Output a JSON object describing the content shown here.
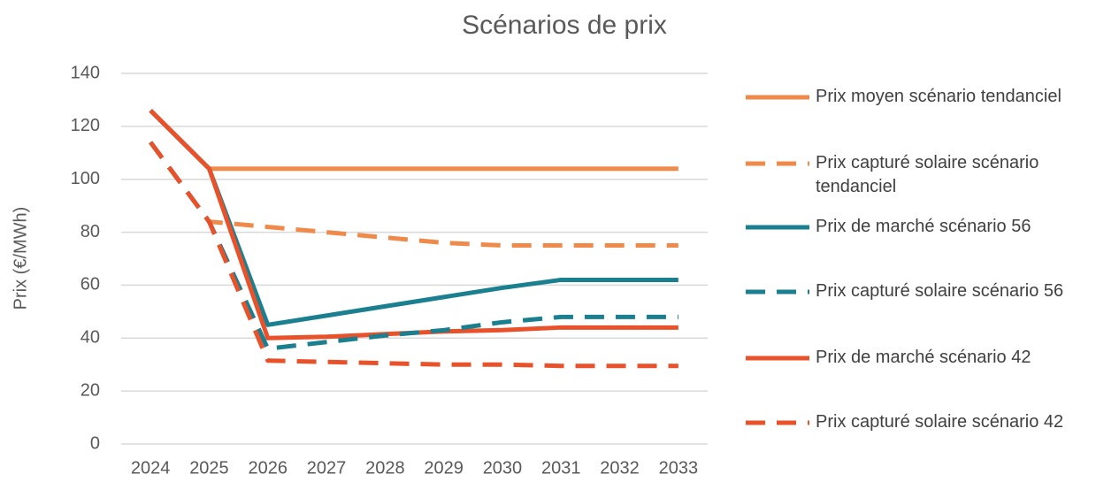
{
  "chart_data": {
    "type": "line",
    "title": "Scénarios de prix",
    "y_label": "Prix (€/MWh)",
    "categories": [
      "2024",
      "2025",
      "2026",
      "2027",
      "2028",
      "2029",
      "2030",
      "2031",
      "2032",
      "2033"
    ],
    "ylim": [
      0,
      140
    ],
    "yticks": [
      0,
      20,
      40,
      60,
      80,
      100,
      120,
      140
    ],
    "grid": true,
    "legend": "right",
    "series": [
      {
        "name": "Prix moyen scénario tendanciel",
        "color": "#f08a4b",
        "dashed": false,
        "values": [
          126,
          104,
          104,
          104,
          104,
          104,
          104,
          104,
          104,
          104
        ]
      },
      {
        "name": "Prix capturé solaire scénario tendanciel",
        "color": "#f08a4b",
        "dashed": true,
        "values": [
          114,
          84,
          82,
          80,
          78,
          76,
          75,
          75,
          75,
          75
        ]
      },
      {
        "name": "Prix de marché scénario 56",
        "color": "#1a7f8e",
        "dashed": false,
        "values": [
          126,
          104,
          45,
          48.5,
          52,
          55.5,
          59,
          62,
          62,
          62
        ]
      },
      {
        "name": "Prix capturé solaire scénario 56",
        "color": "#1a7f8e",
        "dashed": true,
        "values": [
          114,
          84,
          36,
          38.5,
          41,
          43,
          46,
          48,
          48,
          48
        ]
      },
      {
        "name": "Prix de marché scénario 42",
        "color": "#e8512a",
        "dashed": false,
        "values": [
          126,
          104,
          40,
          40.5,
          41.5,
          42.5,
          43,
          44,
          44,
          44
        ]
      },
      {
        "name": "Prix capturé solaire scénario 42",
        "color": "#e8512a",
        "dashed": true,
        "values": [
          114,
          84,
          31.5,
          31,
          30.5,
          30,
          30,
          29.5,
          29.5,
          29.5
        ]
      }
    ]
  }
}
